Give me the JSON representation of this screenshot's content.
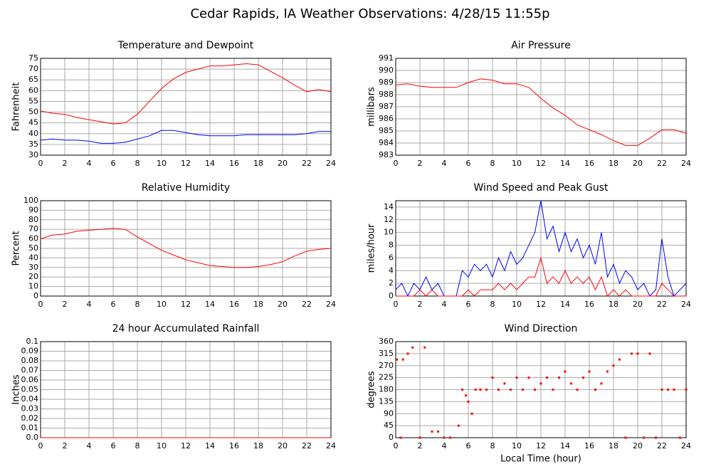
{
  "title": "Cedar Rapids, IA Weather Observations: 4/28/15 11:55p",
  "chart_data": [
    {
      "type": "line",
      "title": "Temperature and Dewpoint",
      "ylabel": "Fahrenheit",
      "x": [
        0,
        1,
        2,
        3,
        4,
        5,
        6,
        7,
        8,
        9,
        10,
        11,
        12,
        13,
        14,
        15,
        16,
        17,
        18,
        19,
        20,
        21,
        22,
        23,
        24
      ],
      "series": [
        {
          "color": "#ff0000",
          "values": [
            50.5,
            49.5,
            49,
            47.5,
            46.5,
            45.5,
            44.5,
            45,
            49,
            55,
            61,
            65.5,
            68.5,
            70,
            71.5,
            71.5,
            72,
            72.5,
            72,
            69,
            66,
            62.5,
            59.5,
            60.5,
            59.5
          ]
        },
        {
          "color": "#0000ff",
          "values": [
            37,
            37.5,
            37,
            37,
            36.5,
            35.5,
            35.5,
            36,
            37.5,
            39,
            41.5,
            41.5,
            40.5,
            39.5,
            39,
            39,
            39,
            39.5,
            39.5,
            39.5,
            39.5,
            39.5,
            40,
            41,
            41
          ]
        }
      ],
      "xlim": [
        0,
        24
      ],
      "xticks": [
        0,
        2,
        4,
        6,
        8,
        10,
        12,
        14,
        16,
        18,
        20,
        22,
        24
      ],
      "ylim": [
        30,
        75
      ],
      "yticks": [
        30,
        35,
        40,
        45,
        50,
        55,
        60,
        65,
        70,
        75
      ],
      "grid": true
    },
    {
      "type": "line",
      "title": "Air Pressure",
      "ylabel": "millibars",
      "x": [
        0,
        1,
        2,
        3,
        4,
        5,
        6,
        7,
        8,
        9,
        10,
        11,
        12,
        13,
        14,
        15,
        16,
        17,
        18,
        19,
        20,
        21,
        22,
        23,
        24
      ],
      "series": [
        {
          "color": "#ff0000",
          "values": [
            988.8,
            988.9,
            988.7,
            988.6,
            988.6,
            988.6,
            989.0,
            989.3,
            989.2,
            988.9,
            988.9,
            988.6,
            987.7,
            986.9,
            986.3,
            985.5,
            985.1,
            984.7,
            984.2,
            983.8,
            983.8,
            984.4,
            985.1,
            985.1,
            984.8
          ]
        }
      ],
      "xlim": [
        0,
        24
      ],
      "xticks": [
        0,
        2,
        4,
        6,
        8,
        10,
        12,
        14,
        16,
        18,
        20,
        22,
        24
      ],
      "ylim": [
        983,
        991
      ],
      "yticks": [
        983,
        984,
        985,
        986,
        987,
        988,
        989,
        990,
        991
      ],
      "grid": true
    },
    {
      "type": "line",
      "title": "Relative Humidity",
      "ylabel": "Percent",
      "x": [
        0,
        1,
        2,
        3,
        4,
        5,
        6,
        7,
        8,
        9,
        10,
        11,
        12,
        13,
        14,
        15,
        16,
        17,
        18,
        19,
        20,
        21,
        22,
        23,
        24
      ],
      "series": [
        {
          "color": "#ff0000",
          "values": [
            60,
            64,
            65,
            68,
            69,
            70,
            71,
            70,
            62,
            55,
            48,
            43,
            38,
            35,
            32,
            31,
            30,
            30,
            31,
            33,
            36,
            42,
            47,
            49,
            50
          ]
        }
      ],
      "xlim": [
        0,
        24
      ],
      "xticks": [
        0,
        2,
        4,
        6,
        8,
        10,
        12,
        14,
        16,
        18,
        20,
        22,
        24
      ],
      "ylim": [
        0,
        100
      ],
      "yticks": [
        0,
        10,
        20,
        30,
        40,
        50,
        60,
        70,
        80,
        90,
        100
      ],
      "grid": true
    },
    {
      "type": "line",
      "title": "Wind Speed and Peak Gust",
      "ylabel": "miles/hour",
      "x": [
        0,
        0.5,
        1,
        1.5,
        2,
        2.5,
        3,
        3.5,
        4,
        4.5,
        5,
        5.5,
        6,
        6.5,
        7,
        7.5,
        8,
        8.5,
        9,
        9.5,
        10,
        10.5,
        11,
        11.5,
        12,
        12.5,
        13,
        13.5,
        14,
        14.5,
        15,
        15.5,
        16,
        16.5,
        17,
        17.5,
        18,
        18.5,
        19,
        19.5,
        20,
        20.5,
        21,
        21.5,
        22,
        22.5,
        23,
        23.5,
        24
      ],
      "series": [
        {
          "color": "#0000ff",
          "values": [
            1,
            2,
            0,
            2,
            1,
            3,
            1,
            2,
            0,
            0,
            0,
            4,
            3,
            5,
            4,
            5,
            3,
            6,
            4,
            7,
            5,
            6,
            8,
            10,
            15,
            9,
            11,
            7,
            10,
            7,
            9,
            6,
            8,
            5,
            10,
            3,
            5,
            2,
            4,
            3,
            1,
            2,
            0,
            1,
            9,
            3,
            0,
            1,
            2
          ]
        },
        {
          "color": "#ff0000",
          "values": [
            0,
            0,
            0,
            0,
            1,
            0,
            1,
            0,
            0,
            0,
            0,
            0,
            1,
            0,
            1,
            1,
            1,
            2,
            1,
            2,
            1,
            2,
            3,
            3,
            6,
            2,
            3,
            2,
            4,
            2,
            3,
            2,
            3,
            1,
            3,
            0,
            1,
            0,
            1,
            0,
            0,
            0,
            0,
            0,
            2,
            1,
            0,
            0,
            0
          ]
        }
      ],
      "xlim": [
        0,
        24
      ],
      "xticks": [
        0,
        2,
        4,
        6,
        8,
        10,
        12,
        14,
        16,
        18,
        20,
        22,
        24
      ],
      "ylim": [
        0,
        15
      ],
      "yticks": [
        0,
        2,
        4,
        6,
        8,
        10,
        12,
        14
      ],
      "grid": true
    },
    {
      "type": "line",
      "title": "24 hour Accumulated Rainfall",
      "ylabel": "Inches",
      "x": [
        0,
        24
      ],
      "series": [
        {
          "color": "#ff0000",
          "values": [
            0,
            0
          ]
        }
      ],
      "xlim": [
        0,
        24
      ],
      "xticks": [
        0,
        2,
        4,
        6,
        8,
        10,
        12,
        14,
        16,
        18,
        20,
        22,
        24
      ],
      "ylim": [
        0,
        0.1
      ],
      "yticks": [
        {
          "value": 0,
          "label": "0.0"
        },
        0.01,
        0.02,
        0.03,
        0.04,
        0.05,
        0.06,
        0.07,
        0.08,
        0.09,
        0.1
      ],
      "grid": true
    },
    {
      "type": "scatter",
      "title": "Wind Direction",
      "ylabel": "degrees",
      "xlabel": "Local Time (hour)",
      "color": "#ff0000",
      "x": [
        0.1,
        0.4,
        0.6,
        1,
        1.4,
        2,
        2.4,
        3,
        3.5,
        4,
        4.5,
        5.2,
        5.5,
        5.8,
        6,
        6.3,
        6.6,
        7,
        7.5,
        8,
        8.5,
        9,
        9.5,
        10,
        10.5,
        11,
        11.5,
        12,
        12.5,
        13,
        13.5,
        14,
        14.5,
        15,
        15.5,
        16,
        16.5,
        17,
        17.5,
        18,
        18.5,
        19,
        19.5,
        20,
        20.5,
        21,
        21.5,
        22,
        22.5,
        23,
        23.5,
        24
      ],
      "values": [
        293,
        0,
        293,
        315,
        338,
        0,
        338,
        23,
        23,
        0,
        0,
        45,
        180,
        158,
        135,
        90,
        180,
        180,
        180,
        225,
        180,
        203,
        180,
        225,
        180,
        225,
        180,
        203,
        225,
        180,
        225,
        248,
        203,
        180,
        225,
        248,
        180,
        203,
        248,
        270,
        293,
        0,
        315,
        315,
        0,
        315,
        0,
        180,
        180,
        180,
        0,
        180
      ],
      "xlim": [
        0,
        24
      ],
      "xticks": [
        0,
        2,
        4,
        6,
        8,
        10,
        12,
        14,
        16,
        18,
        20,
        22,
        24
      ],
      "ylim": [
        0,
        360
      ],
      "yticks": [
        0,
        45,
        90,
        135,
        180,
        225,
        270,
        315,
        360
      ],
      "grid": true
    }
  ]
}
